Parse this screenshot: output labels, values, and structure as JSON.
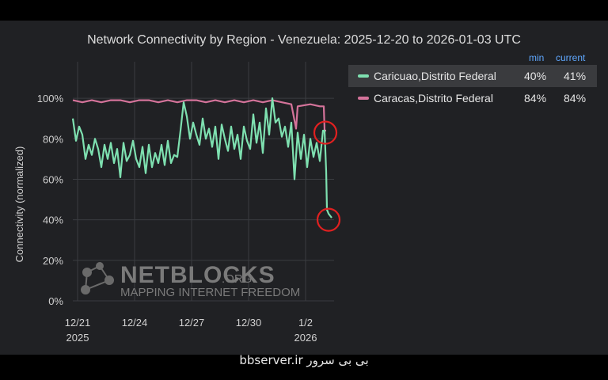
{
  "chart_data": {
    "type": "line",
    "title": "Network Connectivity by Region - Venezuela: 2025-12-20 to 2026-01-03 UTC",
    "ylabel": "Connectivity (normalized)",
    "xlabel": "",
    "ylim": [
      0,
      118
    ],
    "xlim": [
      "2025-12-20T18:00",
      "2026-01-03T12:00"
    ],
    "y_ticks": [
      "0%",
      "20%",
      "40%",
      "60%",
      "80%",
      "100%"
    ],
    "y_tick_values": [
      0,
      20,
      40,
      60,
      80,
      100
    ],
    "x_ticks": [
      {
        "date": "2025-12-21",
        "label": "12/21",
        "year": "2025"
      },
      {
        "date": "2025-12-24",
        "label": "12/24",
        "year": ""
      },
      {
        "date": "2025-12-27",
        "label": "12/27",
        "year": ""
      },
      {
        "date": "2025-12-30",
        "label": "12/30",
        "year": ""
      },
      {
        "date": "2026-01-02",
        "label": "1/2",
        "year": "2026"
      }
    ],
    "grid": true,
    "legend_position": "top-right",
    "legend_columns": {
      "min": "min",
      "current": "current"
    },
    "series": [
      {
        "name": "Caricuao,Distrito Federal",
        "color": "#7ee0b0",
        "min": "40%",
        "current": "41%",
        "selected": true,
        "points": [
          [
            "2025-12-20T18:00",
            90
          ],
          [
            "2025-12-20T22:00",
            79
          ],
          [
            "2025-12-21T02:00",
            86
          ],
          [
            "2025-12-21T06:00",
            82
          ],
          [
            "2025-12-21T10:00",
            70
          ],
          [
            "2025-12-21T14:00",
            77
          ],
          [
            "2025-12-21T18:00",
            72
          ],
          [
            "2025-12-21T22:00",
            80
          ],
          [
            "2025-12-22T02:00",
            75
          ],
          [
            "2025-12-22T06:00",
            66
          ],
          [
            "2025-12-22T10:00",
            77
          ],
          [
            "2025-12-22T14:00",
            70
          ],
          [
            "2025-12-22T18:00",
            78
          ],
          [
            "2025-12-22T22:00",
            68
          ],
          [
            "2025-12-23T02:00",
            75
          ],
          [
            "2025-12-23T06:00",
            61
          ],
          [
            "2025-12-23T10:00",
            78
          ],
          [
            "2025-12-23T14:00",
            69
          ],
          [
            "2025-12-23T18:00",
            72
          ],
          [
            "2025-12-23T22:00",
            79
          ],
          [
            "2025-12-24T02:00",
            70
          ],
          [
            "2025-12-24T06:00",
            66
          ],
          [
            "2025-12-24T10:00",
            76
          ],
          [
            "2025-12-24T14:00",
            63
          ],
          [
            "2025-12-24T18:00",
            77
          ],
          [
            "2025-12-24T22:00",
            66
          ],
          [
            "2025-12-25T02:00",
            73
          ],
          [
            "2025-12-25T06:00",
            68
          ],
          [
            "2025-12-25T10:00",
            77
          ],
          [
            "2025-12-25T14:00",
            67
          ],
          [
            "2025-12-25T18:00",
            79
          ],
          [
            "2025-12-25T22:00",
            68
          ],
          [
            "2025-12-26T02:00",
            72
          ],
          [
            "2025-12-26T06:00",
            71
          ],
          [
            "2025-12-26T10:00",
            84
          ],
          [
            "2025-12-26T14:00",
            98
          ],
          [
            "2025-12-26T18:00",
            91
          ],
          [
            "2025-12-26T22:00",
            80
          ],
          [
            "2025-12-27T02:00",
            88
          ],
          [
            "2025-12-27T06:00",
            82
          ],
          [
            "2025-12-27T10:00",
            77
          ],
          [
            "2025-12-27T14:00",
            90
          ],
          [
            "2025-12-27T18:00",
            80
          ],
          [
            "2025-12-27T22:00",
            85
          ],
          [
            "2025-12-28T02:00",
            76
          ],
          [
            "2025-12-28T06:00",
            86
          ],
          [
            "2025-12-28T10:00",
            70
          ],
          [
            "2025-12-28T14:00",
            87
          ],
          [
            "2025-12-28T18:00",
            80
          ],
          [
            "2025-12-28T22:00",
            74
          ],
          [
            "2025-12-29T02:00",
            86
          ],
          [
            "2025-12-29T06:00",
            75
          ],
          [
            "2025-12-29T10:00",
            82
          ],
          [
            "2025-12-29T14:00",
            70
          ],
          [
            "2025-12-29T18:00",
            86
          ],
          [
            "2025-12-29T22:00",
            79
          ],
          [
            "2025-12-30T02:00",
            75
          ],
          [
            "2025-12-30T06:00",
            92
          ],
          [
            "2025-12-30T10:00",
            78
          ],
          [
            "2025-12-30T14:00",
            88
          ],
          [
            "2025-12-30T18:00",
            73
          ],
          [
            "2025-12-30T22:00",
            95
          ],
          [
            "2025-12-31T02:00",
            82
          ],
          [
            "2025-12-31T06:00",
            100
          ],
          [
            "2025-12-31T10:00",
            88
          ],
          [
            "2025-12-31T14:00",
            90
          ],
          [
            "2025-12-31T18:00",
            81
          ],
          [
            "2025-12-31T22:00",
            86
          ],
          [
            "2026-01-01T02:00",
            76
          ],
          [
            "2026-01-01T06:00",
            88
          ],
          [
            "2026-01-01T10:00",
            60
          ],
          [
            "2026-01-01T14:00",
            83
          ],
          [
            "2026-01-01T18:00",
            70
          ],
          [
            "2026-01-01T22:00",
            82
          ],
          [
            "2026-01-02T02:00",
            66
          ],
          [
            "2026-01-02T06:00",
            80
          ],
          [
            "2026-01-02T10:00",
            71
          ],
          [
            "2026-01-02T14:00",
            78
          ],
          [
            "2026-01-02T18:00",
            69
          ],
          [
            "2026-01-02T22:00",
            84
          ],
          [
            "2026-01-03T00:00",
            84
          ],
          [
            "2026-01-03T02:00",
            64
          ],
          [
            "2026-01-03T03:00",
            45
          ],
          [
            "2026-01-03T05:00",
            43
          ],
          [
            "2026-01-03T07:00",
            42
          ],
          [
            "2026-01-03T09:00",
            41
          ]
        ]
      },
      {
        "name": "Caracas,Distrito Federal",
        "color": "#d4739a",
        "min": "84%",
        "current": "84%",
        "selected": false,
        "points": [
          [
            "2025-12-20T18:00",
            99
          ],
          [
            "2025-12-21T06:00",
            98
          ],
          [
            "2025-12-21T18:00",
            99
          ],
          [
            "2025-12-22T06:00",
            98
          ],
          [
            "2025-12-22T18:00",
            99
          ],
          [
            "2025-12-23T06:00",
            99
          ],
          [
            "2025-12-23T18:00",
            98
          ],
          [
            "2025-12-24T06:00",
            99
          ],
          [
            "2025-12-24T18:00",
            99
          ],
          [
            "2025-12-25T06:00",
            98
          ],
          [
            "2025-12-25T18:00",
            99
          ],
          [
            "2025-12-26T06:00",
            98
          ],
          [
            "2025-12-26T18:00",
            99
          ],
          [
            "2025-12-27T06:00",
            99
          ],
          [
            "2025-12-27T18:00",
            98
          ],
          [
            "2025-12-28T06:00",
            99
          ],
          [
            "2025-12-28T18:00",
            98
          ],
          [
            "2025-12-29T06:00",
            99
          ],
          [
            "2025-12-29T18:00",
            98
          ],
          [
            "2025-12-30T06:00",
            99
          ],
          [
            "2025-12-30T18:00",
            98
          ],
          [
            "2025-12-31T06:00",
            99
          ],
          [
            "2025-12-31T18:00",
            98
          ],
          [
            "2026-01-01T06:00",
            97
          ],
          [
            "2026-01-01T12:00",
            85
          ],
          [
            "2026-01-01T14:00",
            96
          ],
          [
            "2026-01-02T06:00",
            97
          ],
          [
            "2026-01-02T18:00",
            96
          ],
          [
            "2026-01-02T23:00",
            96
          ],
          [
            "2026-01-03T00:00",
            84
          ],
          [
            "2026-01-03T02:00",
            84
          ]
        ]
      }
    ],
    "annotations": [
      {
        "type": "circle",
        "x": "2026-01-03T01:00",
        "y": 83,
        "color": "#e02020"
      },
      {
        "type": "circle",
        "x": "2026-01-03T05:00",
        "y": 40,
        "color": "#e02020"
      }
    ],
    "watermark": {
      "brand": "NETBLOCKS",
      "suffix": ".ORG",
      "tagline": "MAPPING INTERNET FREEDOM"
    }
  },
  "caption": "bbserver.ir بی بی سرور"
}
